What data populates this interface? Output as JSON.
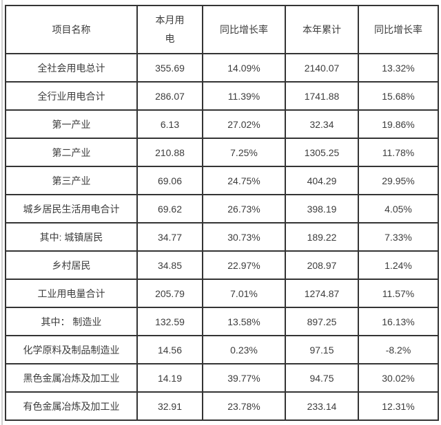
{
  "colors": {
    "table_border": "#333333",
    "text": "#3c3c3c",
    "left_rule": "#cfcfcf",
    "background": "#ffffff"
  },
  "table": {
    "headers": {
      "name": "项目名称",
      "month": "本月用\n电",
      "yoy1": "同比增长率",
      "ytd": "本年累计",
      "yoy2": "同比增长率"
    },
    "rows": [
      [
        "全社会用电总计",
        "355.69",
        "14.09%",
        "2140.07",
        "13.32%"
      ],
      [
        "全行业用电合计",
        "286.07",
        "11.39%",
        "1741.88",
        "15.68%"
      ],
      [
        "第一产业",
        "6.13",
        "27.02%",
        "32.34",
        "19.86%"
      ],
      [
        "第二产业",
        "210.88",
        "7.25%",
        "1305.25",
        "11.78%"
      ],
      [
        "第三产业",
        "69.06",
        "24.75%",
        "404.29",
        "29.95%"
      ],
      [
        "城乡居民生活用电合计",
        "69.62",
        "26.73%",
        "398.19",
        "4.05%"
      ],
      [
        "其中: 城镇居民",
        "34.77",
        "30.73%",
        "189.22",
        "7.33%"
      ],
      [
        "乡村居民",
        "34.85",
        "22.97%",
        "208.97",
        "1.24%"
      ],
      [
        "工业用电量合计",
        "205.79",
        "7.01%",
        "1274.87",
        "11.57%"
      ],
      [
        "其中： 制造业",
        "132.59",
        "13.58%",
        "897.25",
        "16.13%"
      ],
      [
        "化学原料及制品制造业",
        "14.56",
        "0.23%",
        "97.15",
        "-8.2%"
      ],
      [
        "黑色金属冶炼及加工业",
        "14.19",
        "39.77%",
        "94.75",
        "30.02%"
      ],
      [
        "有色金属冶炼及加工业",
        "32.91",
        "23.78%",
        "233.14",
        "12.31%"
      ]
    ]
  }
}
